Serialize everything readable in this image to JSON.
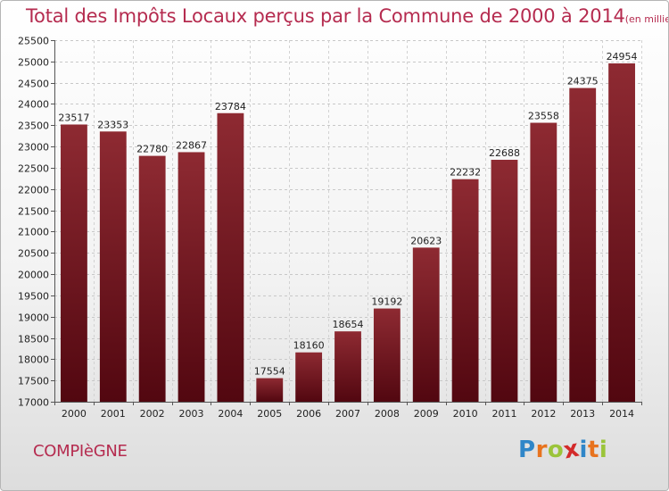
{
  "chart_data": {
    "type": "bar",
    "title": "Total des Impôts Locaux perçus par la Commune de 2000 à 2014",
    "subtitle": "(en milliers d'€)",
    "categories": [
      "2000",
      "2001",
      "2002",
      "2003",
      "2004",
      "2005",
      "2006",
      "2007",
      "2008",
      "2009",
      "2010",
      "2011",
      "2012",
      "2013",
      "2014"
    ],
    "values": [
      23517,
      23353,
      22780,
      22867,
      23784,
      17554,
      18160,
      18654,
      19192,
      20623,
      22232,
      22688,
      23558,
      24375,
      24954
    ],
    "data_labels": [
      "23517",
      "23353",
      "22780",
      "22867",
      "23784",
      "17554",
      "18160",
      "18654",
      "19192",
      "20623",
      "22232",
      "22688",
      "23558",
      "24375",
      "24954"
    ],
    "ylim": [
      17000,
      25500
    ],
    "yticks": [
      17000,
      17500,
      18000,
      18500,
      19000,
      19500,
      20000,
      20500,
      21000,
      21500,
      22000,
      22500,
      23000,
      23500,
      24000,
      24500,
      25000,
      25500
    ],
    "ytick_labels": [
      "17000",
      "17500",
      "18000",
      "18500",
      "19000",
      "19500",
      "20000",
      "20500",
      "21000",
      "21500",
      "22000",
      "22500",
      "23000",
      "23500",
      "24000",
      "24500",
      "25000",
      "25500"
    ],
    "xlabel": "",
    "ylabel": "",
    "grid": true,
    "bar_color": "#7a1a22"
  },
  "commune": "COMPIèGNE",
  "logo": {
    "letters": [
      "P",
      "r",
      "o",
      "x",
      "i",
      "t",
      "i"
    ],
    "colors": [
      "#2f86c8",
      "#e8731e",
      "#9bc43a",
      "#d32a2a",
      "#2f86c8",
      "#e8731e",
      "#9bc43a"
    ]
  },
  "colors": {
    "title": "#b52b4f",
    "bar_top": "#8e2a32",
    "bar_bottom": "#5a0a10"
  }
}
